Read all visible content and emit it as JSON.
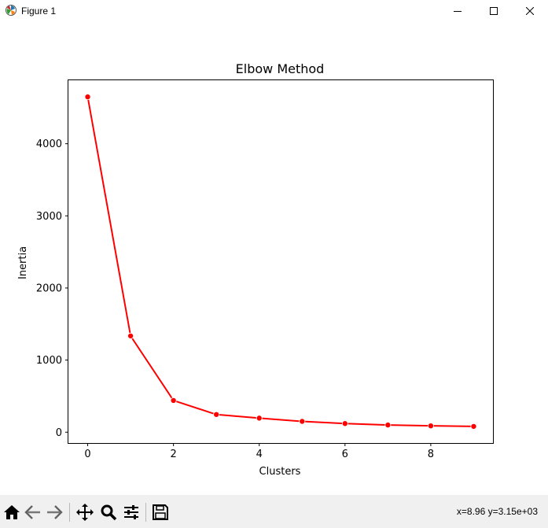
{
  "window": {
    "title": "Figure 1",
    "controls": [
      "minimize-icon",
      "maximize-icon",
      "close-icon"
    ]
  },
  "toolbar": {
    "buttons": [
      "home-icon",
      "back-icon",
      "forward-icon",
      "pan-icon",
      "zoom-icon",
      "configure-subplots-icon",
      "save-icon"
    ],
    "coords": "x=8.96 y=3.15e+03"
  },
  "chart_data": {
    "type": "line",
    "title": "Elbow Method",
    "xlabel": "Clusters",
    "ylabel": "Inertia",
    "x": [
      0,
      1,
      2,
      3,
      4,
      5,
      6,
      7,
      8,
      9
    ],
    "series": [
      {
        "values": [
          4650,
          1335,
          440,
          245,
          195,
          150,
          120,
          100,
          88,
          80
        ],
        "color": "#ff0000",
        "marker": "circle"
      }
    ],
    "xlim": [
      -0.45,
      9.45
    ],
    "ylim": [
      -150,
      4880
    ],
    "xticks": [
      0,
      2,
      4,
      6,
      8
    ],
    "xtick_labels": [
      "0",
      "2",
      "4",
      "6",
      "8"
    ],
    "yticks": [
      0,
      1000,
      2000,
      3000,
      4000
    ],
    "ytick_labels": [
      "0",
      "1000",
      "2000",
      "3000",
      "4000"
    ],
    "grid": false,
    "legend": "none"
  }
}
